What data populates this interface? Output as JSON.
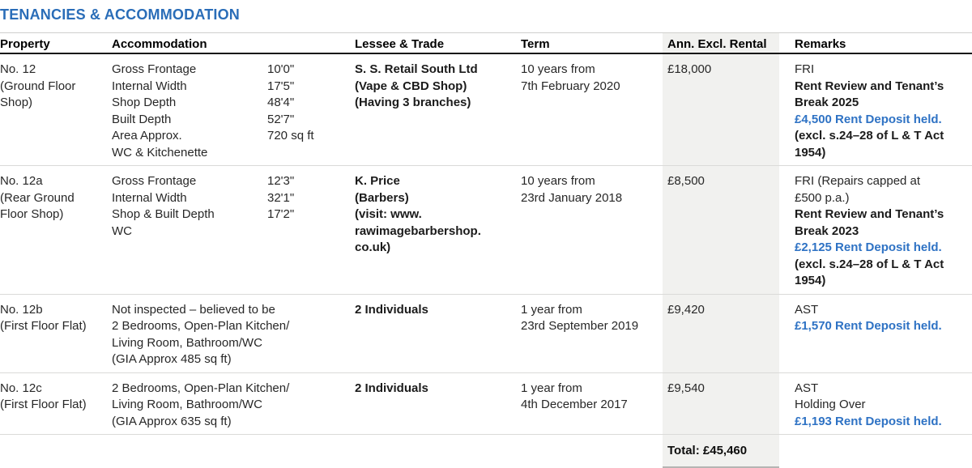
{
  "title": "TENANCIES & ACCOMMODATION",
  "colors": {
    "title_blue": "#2a6db8",
    "deposit_blue": "#2e72c4",
    "rental_band_bg": "#f1f1ef",
    "header_rule_dark": "#161616",
    "row_rule": "#dadad8"
  },
  "table": {
    "headers": [
      "Property",
      "Accommodation",
      "Lessee & Trade",
      "Term",
      "Ann. Excl. Rental",
      "Remarks"
    ],
    "rows": [
      {
        "property": "No. 12\n(Ground Floor\nShop)",
        "accommodation_pairs": [
          {
            "label": "Gross Frontage",
            "value": "10'0\""
          },
          {
            "label": "Internal Width",
            "value": "17'5\""
          },
          {
            "label": "Shop Depth",
            "value": "48'4\""
          },
          {
            "label": "Built Depth",
            "value": "52'7\""
          },
          {
            "label": "Area Approx.",
            "value": "720 sq ft"
          },
          {
            "label": "WC & Kitchenette",
            "value": ""
          }
        ],
        "lessee": "S. S. Retail South Ltd\n(Vape & CBD Shop)\n(Having 3 branches)",
        "term": "10 years from\n7th February 2020",
        "rental": "£18,000",
        "remarks": [
          {
            "text": "FRI",
            "style": "normal"
          },
          {
            "text": "Rent Review and Tenant’s\nBreak 2025",
            "style": "bold"
          },
          {
            "text": "£4,500 Rent Deposit held.",
            "style": "blue"
          },
          {
            "text": "(excl. s.24–28 of L & T Act\n1954)",
            "style": "bold"
          }
        ]
      },
      {
        "property": "No. 12a\n(Rear Ground\nFloor Shop)",
        "accommodation_pairs": [
          {
            "label": "Gross Frontage",
            "value": "12'3\""
          },
          {
            "label": "Internal Width",
            "value": "32'1\""
          },
          {
            "label": "Shop & Built Depth",
            "value": "17'2\""
          },
          {
            "label": "WC",
            "value": ""
          }
        ],
        "lessee": "K. Price\n(Barbers)\n(visit: www.\nrawimagebarbershop.\nco.uk)",
        "term": "10 years from\n23rd January 2018",
        "rental": "£8,500",
        "remarks": [
          {
            "text": "FRI (Repairs capped at\n£500 p.a.)",
            "style": "normal"
          },
          {
            "text": "Rent Review and Tenant’s\nBreak 2023",
            "style": "bold"
          },
          {
            "text": "£2,125 Rent Deposit held.",
            "style": "blue"
          },
          {
            "text": "(excl. s.24–28 of L & T Act\n1954)",
            "style": "bold"
          }
        ]
      },
      {
        "property": "No. 12b\n(First Floor Flat)",
        "accommodation_text": "Not inspected – believed to be\n2 Bedrooms, Open-Plan Kitchen/\nLiving Room, Bathroom/WC\n(GIA Approx 485 sq ft)",
        "lessee": "2 Individuals",
        "term": "1 year from\n23rd September 2019",
        "rental": "£9,420",
        "remarks": [
          {
            "text": "AST",
            "style": "normal"
          },
          {
            "text": "£1,570 Rent Deposit held.",
            "style": "blue"
          }
        ]
      },
      {
        "property": "No. 12c\n(First Floor Flat)",
        "accommodation_text": "2 Bedrooms, Open-Plan Kitchen/\nLiving Room, Bathroom/WC\n(GIA Approx 635 sq ft)",
        "lessee": "2 Individuals",
        "term": "1 year from\n4th December 2017",
        "rental": "£9,540",
        "remarks": [
          {
            "text": "AST",
            "style": "normal"
          },
          {
            "text": "Holding Over",
            "style": "normal"
          },
          {
            "text": "£1,193 Rent Deposit held.",
            "style": "blue"
          }
        ]
      }
    ],
    "total_label": "Total: £45,460"
  }
}
